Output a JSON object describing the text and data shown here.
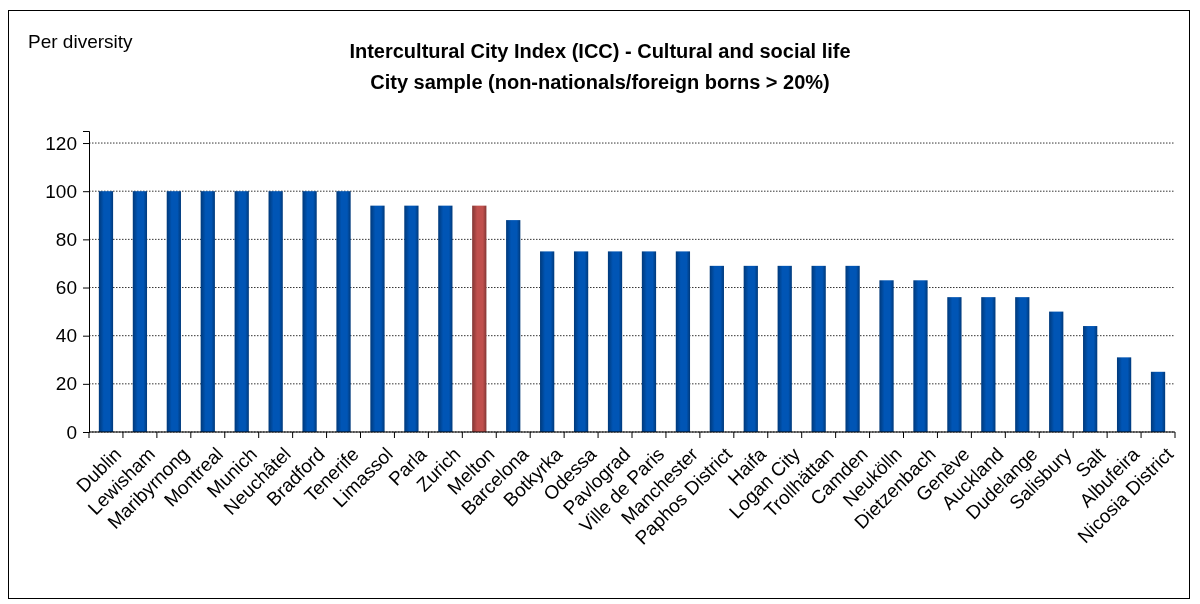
{
  "chart_data": {
    "type": "bar",
    "title": "Intercultural City Index (ICC) - Cultural and social life",
    "subtitle": "City sample (non-nationals/foreign borns > 20%)",
    "ylabel": "Per diversity",
    "categories": [
      "Dublin",
      "Lewisham",
      "Maribyrnong",
      "Montreal",
      "Munich",
      "Neuchâtel",
      "Bradford",
      "Tenerife",
      "Limassol",
      "Parla",
      "Zurich",
      "Melton",
      "Barcelona",
      "Botkyrka",
      "Odessa",
      "Pavlograd",
      "Ville de Paris",
      "Manchester",
      "Paphos District",
      "Haifa",
      "Logan City",
      "Trollhättan",
      "Camden",
      "Neukölln",
      "Dietzenbach",
      "Genève",
      "Auckland",
      "Dudelange",
      "Salisbury",
      "Salt",
      "Albufeira",
      "Nicosia District"
    ],
    "values": [
      100,
      100,
      100,
      100,
      100,
      100,
      100,
      100,
      94,
      94,
      94,
      94,
      88,
      75,
      75,
      75,
      75,
      75,
      69,
      69,
      69,
      69,
      69,
      63,
      63,
      56,
      56,
      56,
      50,
      44,
      31,
      25
    ],
    "colors": [
      "#0055b5",
      "#0055b5",
      "#0055b5",
      "#0055b5",
      "#0055b5",
      "#0055b5",
      "#0055b5",
      "#0055b5",
      "#0055b5",
      "#0055b5",
      "#0055b5",
      "#c0504d",
      "#0055b5",
      "#0055b5",
      "#0055b5",
      "#0055b5",
      "#0055b5",
      "#0055b5",
      "#0055b5",
      "#0055b5",
      "#0055b5",
      "#0055b5",
      "#0055b5",
      "#0055b5",
      "#0055b5",
      "#0055b5",
      "#0055b5",
      "#0055b5",
      "#0055b5",
      "#0055b5",
      "#0055b5",
      "#0055b5"
    ],
    "ylim": [
      0,
      125
    ],
    "yticks": [
      0,
      20,
      40,
      60,
      80,
      100,
      120
    ],
    "grid": "y"
  }
}
